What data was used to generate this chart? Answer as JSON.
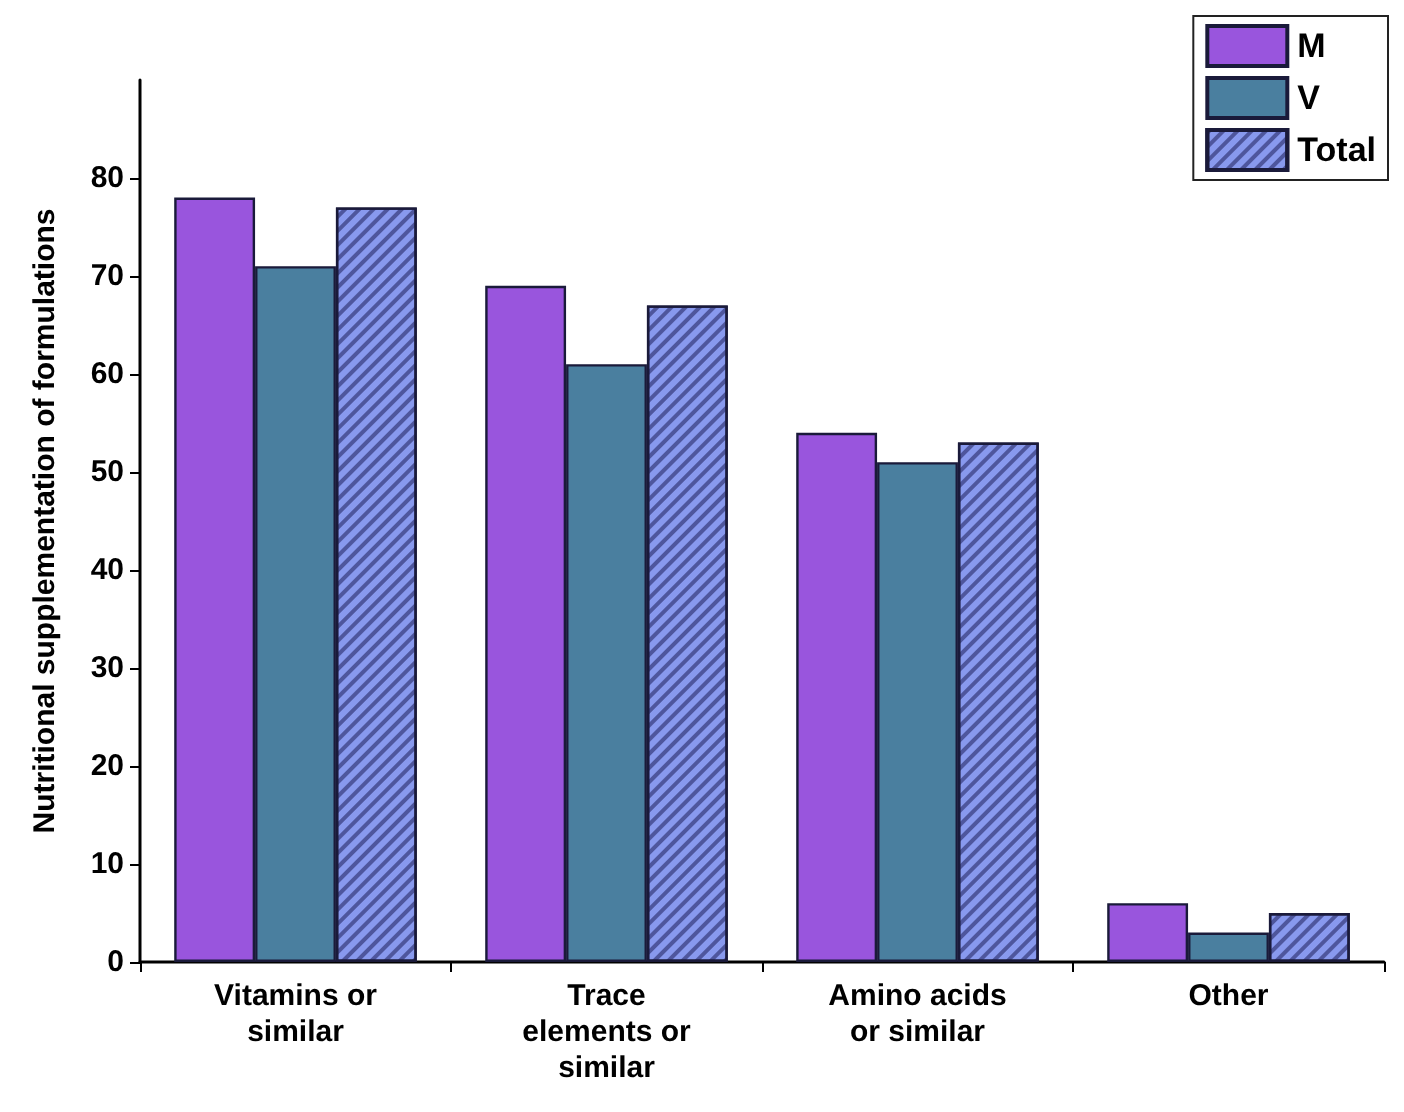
{
  "chart_data": {
    "type": "bar",
    "ylabel": "Nutritional supplementation of formulations",
    "categories": [
      "Vitamins or\nsimilar",
      "Trace\nelements or\nsimilar",
      "Amino acids\nor similar",
      "Other"
    ],
    "series": [
      {
        "name": "M",
        "color": "#9955dd",
        "values": [
          78,
          69,
          54,
          6
        ]
      },
      {
        "name": "V",
        "color": "#4a7f9f",
        "values": [
          71,
          61,
          51,
          3
        ]
      },
      {
        "name": "Total",
        "color": "#8899ee",
        "values": [
          77,
          67,
          53,
          5
        ]
      }
    ],
    "ylim": [
      0,
      90
    ],
    "yticks": [
      0,
      10,
      20,
      30,
      40,
      50,
      60,
      70,
      80
    ],
    "grid": false,
    "legend": "top right"
  }
}
